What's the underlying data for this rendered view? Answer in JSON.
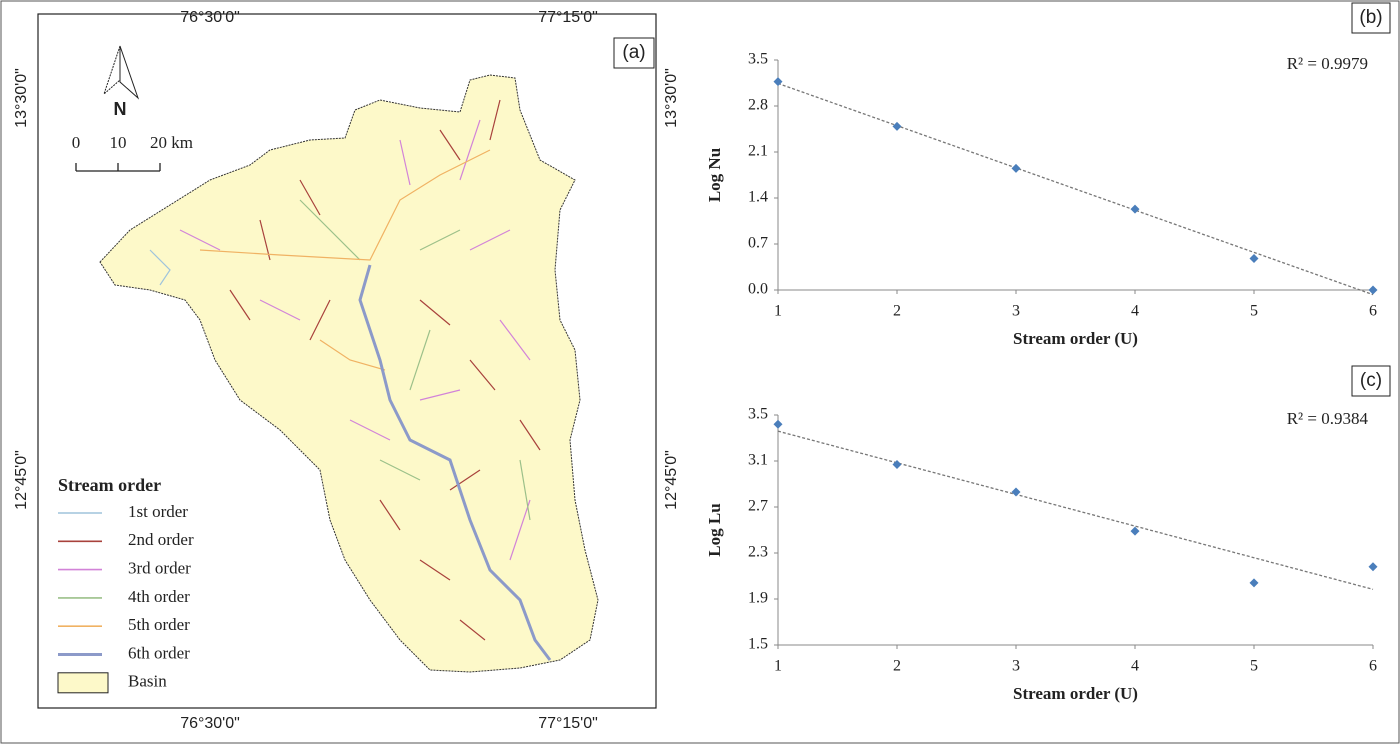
{
  "map": {
    "panel_label": "(a)",
    "top_labels": [
      "76°30'0\"",
      "77°15'0\""
    ],
    "bottom_labels": [
      "76°30'0\"",
      "77°15'0\""
    ],
    "left_labels": [
      "13°30'0\"",
      "12°45'0\""
    ],
    "right_labels": [
      "13°30'0\"",
      "12°45'0\""
    ],
    "north": "N",
    "scale_labels": [
      "0",
      "10",
      "20 km"
    ],
    "legend": {
      "title": "Stream order",
      "items": [
        {
          "label": "1st order",
          "color": "#9fc4dc"
        },
        {
          "label": "2nd order",
          "color": "#a8423c"
        },
        {
          "label": "3rd order",
          "color": "#d283d8"
        },
        {
          "label": "4th order",
          "color": "#9cc08a"
        },
        {
          "label": "5th order",
          "color": "#f0b263"
        },
        {
          "label": "6th order",
          "color": "#8c9ac9"
        },
        {
          "label": "Basin",
          "color": "#fdf9c9"
        }
      ]
    }
  },
  "chart_data": [
    {
      "type": "scatter",
      "panel_label": "(b)",
      "annotation": "R² = 0.9979",
      "x_label": "Stream order (U)",
      "y_label": "Log Nu",
      "x": [
        1,
        2,
        3,
        4,
        5,
        6
      ],
      "values": [
        3.17,
        2.49,
        1.85,
        1.23,
        0.48,
        0.0
      ],
      "color": "#4a7ebb",
      "trendline": true,
      "xlim": [
        1,
        6
      ],
      "xticks": [
        1,
        2,
        3,
        4,
        5,
        6
      ],
      "ylim": [
        0,
        3.5
      ],
      "yticks": [
        {
          "value": 0,
          "label": "0.0"
        },
        0.7,
        1.4,
        2.1,
        2.8,
        3.5
      ]
    },
    {
      "type": "scatter",
      "panel_label": "(c)",
      "annotation": "R² = 0.9384",
      "x_label": "Stream order (U)",
      "y_label": "Log Lu",
      "x": [
        1,
        2,
        3,
        4,
        5,
        6
      ],
      "values": [
        3.42,
        3.07,
        2.83,
        2.49,
        2.04,
        2.18
      ],
      "color": "#4a7ebb",
      "trendline": true,
      "xlim": [
        1,
        6
      ],
      "xticks": [
        1,
        2,
        3,
        4,
        5,
        6
      ],
      "ylim": [
        1.5,
        3.5
      ],
      "yticks": [
        1.5,
        1.9,
        2.3,
        2.7,
        3.1,
        3.5
      ]
    }
  ]
}
